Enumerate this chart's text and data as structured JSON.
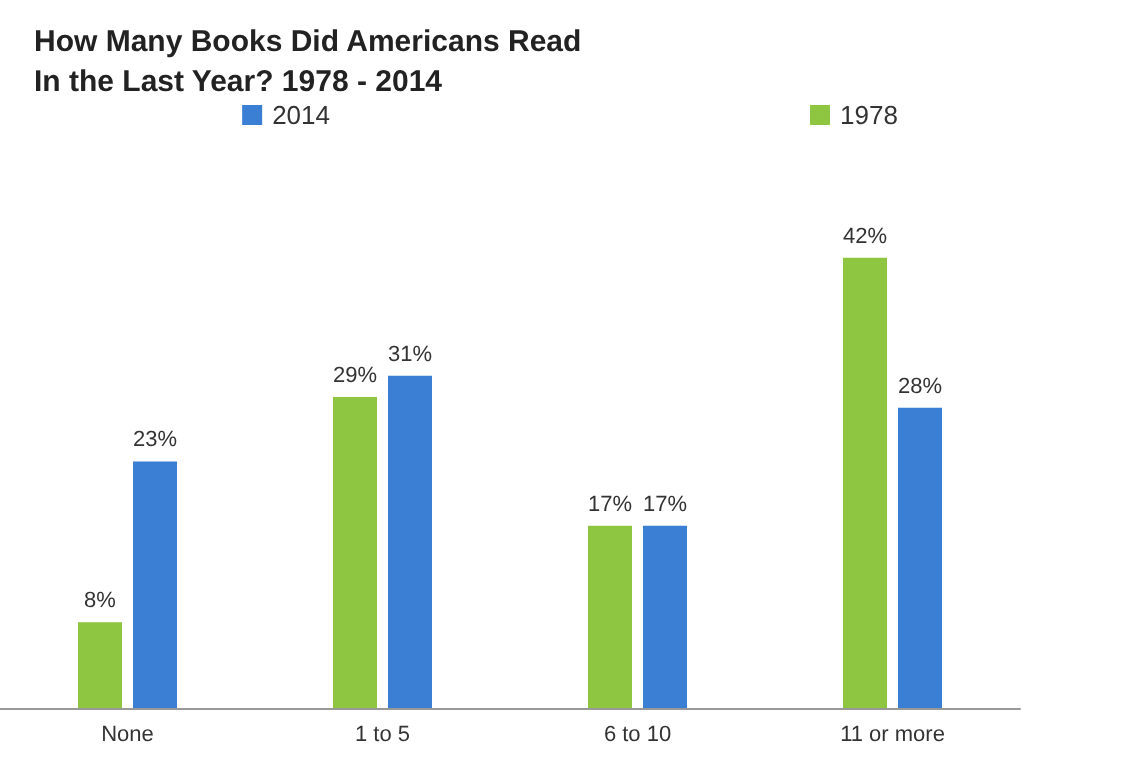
{
  "chart_data": {
    "type": "bar",
    "title": "How Many Books Did Americans Read\nIn the Last Year? 1978 - 2014",
    "categories": [
      "None",
      "1 to 5",
      "6 to 10",
      "11 or more"
    ],
    "series": [
      {
        "name": "1978",
        "color": "#8fc641",
        "values": [
          8,
          29,
          17,
          42
        ],
        "value_labels": [
          "8%",
          "29%",
          "17%",
          "42%"
        ]
      },
      {
        "name": "2014",
        "color": "#3b7fd4",
        "values": [
          23,
          31,
          17,
          28
        ],
        "value_labels": [
          "23%",
          "31%",
          "17%",
          "28%"
        ]
      }
    ],
    "legend": "top"
  }
}
